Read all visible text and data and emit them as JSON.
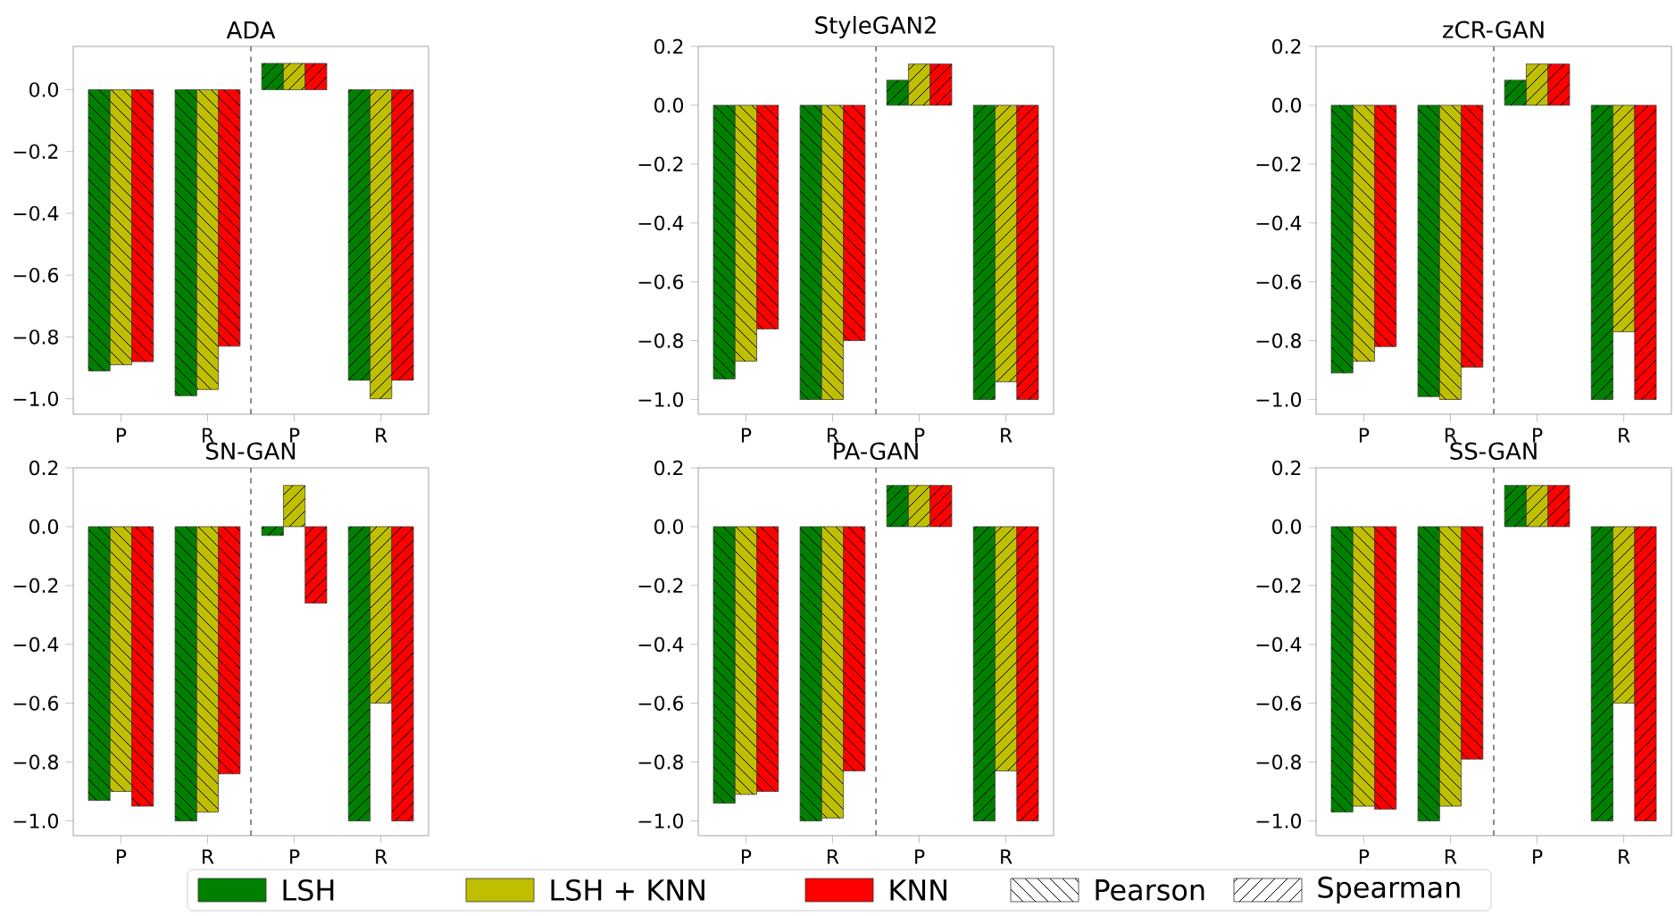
{
  "chart_data": [
    {
      "type": "bar",
      "title": "ADA",
      "categories": [
        "P",
        "R",
        "P",
        "R"
      ],
      "ylim": [
        -1.05,
        0.14
      ],
      "yticks": [
        {
          "value": -1.0,
          "label": "−1.0"
        },
        {
          "value": -0.8,
          "label": "−0.8"
        },
        {
          "value": -0.6,
          "label": "−0.6"
        },
        {
          "value": -0.4,
          "label": "−0.4"
        },
        {
          "value": -0.2,
          "label": "−0.2"
        },
        {
          "value": 0.0,
          "label": "0.0"
        }
      ],
      "series": [
        {
          "name": "LSH",
          "color": "#008000",
          "values": [
            -0.91,
            -0.99,
            0.085,
            -0.94
          ]
        },
        {
          "name": "LSH + KNN",
          "color": "#bfbf00",
          "values": [
            -0.89,
            -0.97,
            0.085,
            -1.0
          ]
        },
        {
          "name": "KNN",
          "color": "#ff0000",
          "values": [
            -0.88,
            -0.83,
            0.085,
            -0.94
          ]
        }
      ],
      "annotations": [
        "Pearson",
        "Spearman"
      ],
      "legend": "bottom"
    },
    {
      "type": "bar",
      "title": "StyleGAN2",
      "categories": [
        "P",
        "R",
        "P",
        "R"
      ],
      "ylim": [
        -1.05,
        0.2
      ],
      "yticks": [
        {
          "value": -1.0,
          "label": "−1.0"
        },
        {
          "value": -0.8,
          "label": "−0.8"
        },
        {
          "value": -0.6,
          "label": "−0.6"
        },
        {
          "value": -0.4,
          "label": "−0.4"
        },
        {
          "value": -0.2,
          "label": "−0.2"
        },
        {
          "value": 0.0,
          "label": "0.0"
        },
        {
          "value": 0.2,
          "label": "0.2"
        }
      ],
      "series": [
        {
          "color": "#008000",
          "values": [
            -0.93,
            -1.0,
            0.085,
            -1.0
          ]
        },
        {
          "color": "#bfbf00",
          "values": [
            -0.87,
            -1.0,
            0.14,
            -0.94
          ]
        },
        {
          "color": "#ff0000",
          "values": [
            -0.76,
            -0.8,
            0.14,
            -1.0
          ]
        }
      ]
    },
    {
      "type": "bar",
      "title": "zCR-GAN",
      "categories": [
        "P",
        "R",
        "P",
        "R"
      ],
      "ylim": [
        -1.05,
        0.2
      ],
      "yticks": [
        {
          "value": -1.0,
          "label": "−1.0"
        },
        {
          "value": -0.8,
          "label": "−0.8"
        },
        {
          "value": -0.6,
          "label": "−0.6"
        },
        {
          "value": -0.4,
          "label": "−0.4"
        },
        {
          "value": -0.2,
          "label": "−0.2"
        },
        {
          "value": 0.0,
          "label": "0.0"
        },
        {
          "value": 0.2,
          "label": "0.2"
        }
      ],
      "series": [
        {
          "color": "#008000",
          "values": [
            -0.91,
            -0.99,
            0.085,
            -1.0
          ]
        },
        {
          "color": "#bfbf00",
          "values": [
            -0.87,
            -1.0,
            0.14,
            -0.77
          ]
        },
        {
          "color": "#ff0000",
          "values": [
            -0.82,
            -0.89,
            0.14,
            -1.0
          ]
        }
      ]
    },
    {
      "type": "bar",
      "title": "SN-GAN",
      "categories": [
        "P",
        "R",
        "P",
        "R"
      ],
      "ylim": [
        -1.05,
        0.2
      ],
      "yticks": [
        {
          "value": -1.0,
          "label": "−1.0"
        },
        {
          "value": -0.8,
          "label": "−0.8"
        },
        {
          "value": -0.6,
          "label": "−0.6"
        },
        {
          "value": -0.4,
          "label": "−0.4"
        },
        {
          "value": -0.2,
          "label": "−0.2"
        },
        {
          "value": 0.0,
          "label": "0.0"
        },
        {
          "value": 0.2,
          "label": "0.2"
        }
      ],
      "series": [
        {
          "color": "#008000",
          "values": [
            -0.93,
            -1.0,
            -0.03,
            -1.0
          ]
        },
        {
          "color": "#bfbf00",
          "values": [
            -0.9,
            -0.97,
            0.14,
            -0.6
          ]
        },
        {
          "color": "#ff0000",
          "values": [
            -0.95,
            -0.84,
            -0.26,
            -1.0
          ]
        }
      ]
    },
    {
      "type": "bar",
      "title": "PA-GAN",
      "categories": [
        "P",
        "R",
        "P",
        "R"
      ],
      "ylim": [
        -1.05,
        0.2
      ],
      "yticks": [
        {
          "value": -1.0,
          "label": "−1.0"
        },
        {
          "value": -0.8,
          "label": "−0.8"
        },
        {
          "value": -0.6,
          "label": "−0.6"
        },
        {
          "value": -0.4,
          "label": "−0.4"
        },
        {
          "value": -0.2,
          "label": "−0.2"
        },
        {
          "value": 0.0,
          "label": "0.0"
        },
        {
          "value": 0.2,
          "label": "0.2"
        }
      ],
      "series": [
        {
          "color": "#008000",
          "values": [
            -0.94,
            -1.0,
            0.14,
            -1.0
          ]
        },
        {
          "color": "#bfbf00",
          "values": [
            -0.91,
            -0.99,
            0.14,
            -0.83
          ]
        },
        {
          "color": "#ff0000",
          "values": [
            -0.9,
            -0.83,
            0.14,
            -1.0
          ]
        }
      ]
    },
    {
      "type": "bar",
      "title": "SS-GAN",
      "categories": [
        "P",
        "R",
        "P",
        "R"
      ],
      "ylim": [
        -1.05,
        0.2
      ],
      "yticks": [
        {
          "value": -1.0,
          "label": "−1.0"
        },
        {
          "value": -0.8,
          "label": "−0.8"
        },
        {
          "value": -0.6,
          "label": "−0.6"
        },
        {
          "value": -0.4,
          "label": "−0.4"
        },
        {
          "value": -0.2,
          "label": "−0.2"
        },
        {
          "value": 0.0,
          "label": "0.0"
        },
        {
          "value": 0.2,
          "label": "0.2"
        }
      ],
      "series": [
        {
          "color": "#008000",
          "values": [
            -0.97,
            -1.0,
            0.14,
            -1.0
          ]
        },
        {
          "color": "#bfbf00",
          "values": [
            -0.95,
            -0.95,
            0.14,
            -0.6
          ]
        },
        {
          "color": "#ff0000",
          "values": [
            -0.96,
            -0.79,
            0.14,
            -1.0
          ]
        }
      ]
    }
  ]
}
